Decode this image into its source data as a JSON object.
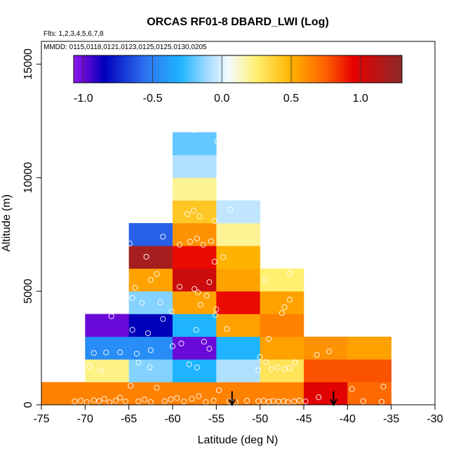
{
  "chart_data": {
    "type": "heatmap",
    "title": "ORCAS RF01-8 DBARD_LWI (Log)",
    "flights_label": "Flts: 1,2,3,4,5,6,7,8",
    "mmdd_label": "MMDD: 0115,0118,0121,0123,0125,0125,0130,0205",
    "xlabel": "Latitude (deg N)",
    "ylabel": "Altitude (m)",
    "xlim": [
      -75,
      -30
    ],
    "ylim": [
      0,
      16000
    ],
    "x_ticks": [
      -75,
      -70,
      -65,
      -60,
      -55,
      -50,
      -45,
      -40,
      -35,
      -30
    ],
    "x_tick_labels": [
      "-75",
      "-70",
      "-65",
      "-60",
      "-55",
      "-50",
      "-45",
      "-40",
      "-35",
      "-30"
    ],
    "y_ticks": [
      0,
      5000,
      10000,
      15000
    ],
    "y_tick_labels": [
      "0",
      "5000",
      "10000",
      "15000"
    ],
    "colorbar": {
      "range": [
        -1.07,
        1.3
      ],
      "ticks": [
        -1.0,
        -0.5,
        0.0,
        0.5,
        1.0
      ],
      "tick_labels": [
        "-1.0",
        "-0.5",
        "0.0",
        "0.5",
        "1.0"
      ],
      "stops": [
        {
          "v": -1.07,
          "c": "#8b1cf0"
        },
        {
          "v": -1.0,
          "c": "#6a0ad8"
        },
        {
          "v": -0.85,
          "c": "#0000bb"
        },
        {
          "v": -0.55,
          "c": "#2f73f0"
        },
        {
          "v": -0.3,
          "c": "#1eb4ff"
        },
        {
          "v": -0.1,
          "c": "#a6dcff"
        },
        {
          "v": 0.05,
          "c": "#f4fbff"
        },
        {
          "v": 0.25,
          "c": "#fff070"
        },
        {
          "v": 0.5,
          "c": "#ffb300"
        },
        {
          "v": 0.75,
          "c": "#ff6000"
        },
        {
          "v": 0.95,
          "c": "#e60000"
        },
        {
          "v": 1.3,
          "c": "#8c2a2a"
        }
      ]
    },
    "cell_width_deg": 5,
    "cell_height_m": 1000,
    "cells": [
      {
        "lat": -75,
        "alt": 0,
        "value": 0.65
      },
      {
        "lat": -70,
        "alt": 0,
        "value": 0.65
      },
      {
        "lat": -65,
        "alt": 0,
        "value": 0.65
      },
      {
        "lat": -60,
        "alt": 0,
        "value": 0.65
      },
      {
        "lat": -55,
        "alt": 0,
        "value": 0.65
      },
      {
        "lat": -50,
        "alt": 0,
        "value": 0.65
      },
      {
        "lat": -45,
        "alt": 0,
        "value": 0.97
      },
      {
        "lat": -40,
        "alt": 0,
        "value": 0.72
      },
      {
        "lat": -70,
        "alt": 1000,
        "value": 0.22
      },
      {
        "lat": -65,
        "alt": 1000,
        "value": -0.15
      },
      {
        "lat": -60,
        "alt": 1000,
        "value": -0.3
      },
      {
        "lat": -55,
        "alt": 1000,
        "value": -0.08
      },
      {
        "lat": -50,
        "alt": 1000,
        "value": 0.3
      },
      {
        "lat": -45,
        "alt": 1000,
        "value": 0.78
      },
      {
        "lat": -40,
        "alt": 1000,
        "value": 0.78
      },
      {
        "lat": -70,
        "alt": 2000,
        "value": -0.45
      },
      {
        "lat": -65,
        "alt": 2000,
        "value": -0.45
      },
      {
        "lat": -60,
        "alt": 2000,
        "value": -1.0
      },
      {
        "lat": -55,
        "alt": 2000,
        "value": -0.3
      },
      {
        "lat": -50,
        "alt": 2000,
        "value": 0.55
      },
      {
        "lat": -45,
        "alt": 2000,
        "value": 0.6
      },
      {
        "lat": -40,
        "alt": 2000,
        "value": 0.55
      },
      {
        "lat": -70,
        "alt": 3000,
        "value": -1.0
      },
      {
        "lat": -65,
        "alt": 3000,
        "value": -0.85
      },
      {
        "lat": -60,
        "alt": 3000,
        "value": -0.3
      },
      {
        "lat": -55,
        "alt": 3000,
        "value": 0.55
      },
      {
        "lat": -50,
        "alt": 3000,
        "value": 0.65
      },
      {
        "lat": -65,
        "alt": 4000,
        "value": -0.15
      },
      {
        "lat": -60,
        "alt": 4000,
        "value": 0.55
      },
      {
        "lat": -55,
        "alt": 4000,
        "value": 0.93
      },
      {
        "lat": -50,
        "alt": 4000,
        "value": 0.55
      },
      {
        "lat": -65,
        "alt": 5000,
        "value": 0.55
      },
      {
        "lat": -60,
        "alt": 5000,
        "value": 1.05
      },
      {
        "lat": -55,
        "alt": 5000,
        "value": 0.55
      },
      {
        "lat": -50,
        "alt": 5000,
        "value": 0.25
      },
      {
        "lat": -65,
        "alt": 6000,
        "value": 1.2
      },
      {
        "lat": -60,
        "alt": 6000,
        "value": 0.93
      },
      {
        "lat": -55,
        "alt": 6000,
        "value": 0.5
      },
      {
        "lat": -65,
        "alt": 7000,
        "value": -0.6
      },
      {
        "lat": -60,
        "alt": 7000,
        "value": 0.6
      },
      {
        "lat": -55,
        "alt": 7000,
        "value": 0.2
      },
      {
        "lat": -60,
        "alt": 8000,
        "value": 0.42
      },
      {
        "lat": -55,
        "alt": 8000,
        "value": -0.05
      },
      {
        "lat": -60,
        "alt": 9000,
        "value": 0.2
      },
      {
        "lat": -60,
        "alt": 10000,
        "value": -0.08
      },
      {
        "lat": -60,
        "alt": 11000,
        "value": -0.2
      }
    ],
    "points": [
      [
        -71.2,
        150
      ],
      [
        -70.5,
        180
      ],
      [
        -69.8,
        120
      ],
      [
        -69.0,
        200
      ],
      [
        -68.4,
        160
      ],
      [
        -67.8,
        260
      ],
      [
        -67.2,
        110
      ],
      [
        -66.5,
        180
      ],
      [
        -66.0,
        320
      ],
      [
        -65.4,
        150
      ],
      [
        -64.8,
        840
      ],
      [
        -63.9,
        150
      ],
      [
        -63.2,
        230
      ],
      [
        -62.5,
        120
      ],
      [
        -61.8,
        750
      ],
      [
        -60.9,
        160
      ],
      [
        -60.2,
        240
      ],
      [
        -59.5,
        300
      ],
      [
        -58.7,
        150
      ],
      [
        -57.8,
        260
      ],
      [
        -57.0,
        380
      ],
      [
        -56.2,
        120
      ],
      [
        -55.3,
        180
      ],
      [
        -54.7,
        640
      ],
      [
        -53.5,
        150
      ],
      [
        -52.8,
        120
      ],
      [
        -51.5,
        180
      ],
      [
        -50.2,
        160
      ],
      [
        -49.6,
        180
      ],
      [
        -49.0,
        130
      ],
      [
        -48.5,
        170
      ],
      [
        -47.9,
        140
      ],
      [
        -47.3,
        160
      ],
      [
        -46.8,
        120
      ],
      [
        -46.1,
        150
      ],
      [
        -45.5,
        190
      ],
      [
        -44.8,
        150
      ],
      [
        -43.3,
        330
      ],
      [
        -39.5,
        700
      ],
      [
        -38.2,
        160
      ],
      [
        -36.1,
        130
      ],
      [
        -35.9,
        800
      ],
      [
        -70.6,
        1550
      ],
      [
        -69.5,
        1700
      ],
      [
        -68.2,
        1500
      ],
      [
        -63.9,
        1860
      ],
      [
        -62.6,
        1650
      ],
      [
        -58.1,
        1780
      ],
      [
        -57.2,
        1650
      ],
      [
        -50.2,
        1520
      ],
      [
        -49.3,
        1880
      ],
      [
        -48.7,
        1570
      ],
      [
        -48.0,
        1640
      ],
      [
        -47.2,
        1580
      ],
      [
        -46.6,
        1610
      ],
      [
        -46.0,
        1870
      ],
      [
        -69.0,
        2280
      ],
      [
        -67.6,
        2300
      ],
      [
        -66.0,
        2310
      ],
      [
        -64.1,
        2250
      ],
      [
        -62.5,
        2400
      ],
      [
        -60.0,
        2580
      ],
      [
        -59.0,
        2700
      ],
      [
        -56.4,
        2780
      ],
      [
        -55.8,
        2470
      ],
      [
        -50.0,
        2100
      ],
      [
        -49.0,
        2900
      ],
      [
        -43.5,
        2200
      ],
      [
        -42.1,
        2350
      ],
      [
        -67.0,
        3900
      ],
      [
        -64.6,
        3300
      ],
      [
        -62.8,
        3150
      ],
      [
        -61.1,
        3780
      ],
      [
        -57.3,
        3300
      ],
      [
        -55.1,
        3950
      ],
      [
        -53.8,
        3340
      ],
      [
        -47.5,
        4040
      ],
      [
        -47.2,
        4300
      ],
      [
        -46.6,
        4630
      ],
      [
        -64.6,
        4700
      ],
      [
        -63.5,
        4480
      ],
      [
        -61.4,
        4500
      ],
      [
        -60.1,
        4100
      ],
      [
        -57.1,
        4950
      ],
      [
        -56.8,
        4400
      ],
      [
        -56.1,
        4800
      ],
      [
        -55.0,
        4200
      ],
      [
        -66.1,
        5700
      ],
      [
        -64.3,
        5160
      ],
      [
        -62.5,
        5500
      ],
      [
        -61.8,
        5760
      ],
      [
        -59.2,
        5200
      ],
      [
        -57.5,
        5100
      ],
      [
        -55.8,
        5400
      ],
      [
        -49.4,
        5500
      ],
      [
        -46.6,
        5800
      ],
      [
        -63.0,
        6520
      ],
      [
        -55.2,
        6300
      ],
      [
        -54.2,
        6500
      ],
      [
        -65.5,
        7550
      ],
      [
        -64.9,
        7100
      ],
      [
        -61.1,
        7400
      ],
      [
        -59.2,
        7050
      ],
      [
        -58.0,
        7180
      ],
      [
        -57.2,
        7320
      ],
      [
        -56.5,
        7050
      ],
      [
        -55.6,
        7200
      ],
      [
        -58.3,
        8400
      ],
      [
        -57.6,
        8550
      ],
      [
        -56.9,
        8300
      ],
      [
        -55.2,
        8100
      ],
      [
        -53.4,
        8600
      ],
      [
        -54.9,
        11600
      ],
      [
        -57.6,
        12100
      ]
    ],
    "arrows": [
      {
        "lat": -53.2,
        "alt_top": 600,
        "alt_bottom": 0
      },
      {
        "lat": -41.6,
        "alt_top": 600,
        "alt_bottom": 0
      }
    ]
  }
}
